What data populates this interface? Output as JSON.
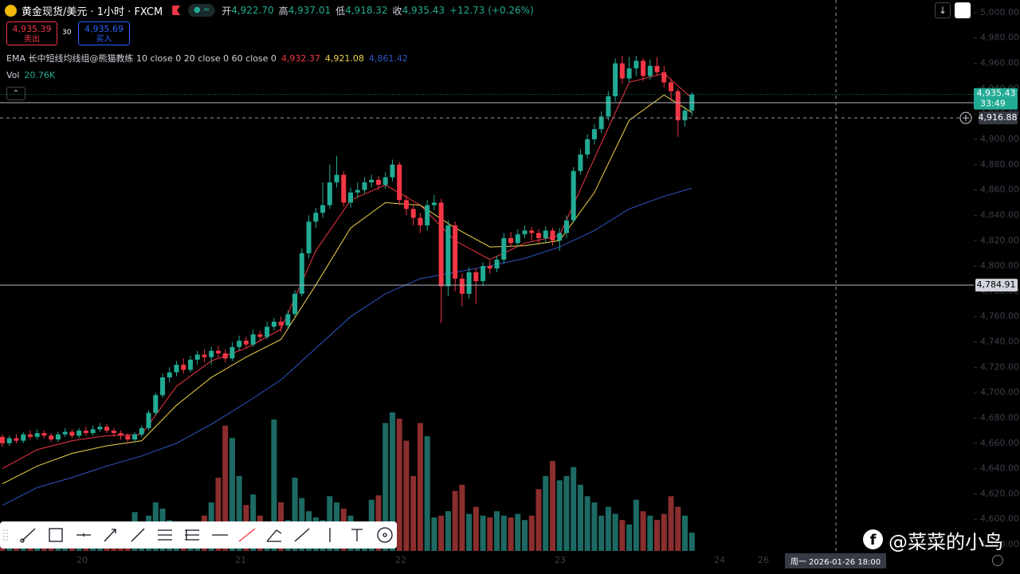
{
  "chart_data": {
    "type": "candlestick",
    "title": "黄金现货/美元 · 1小时 · FXCM",
    "readout": [
      {
        "name": "开",
        "value": "4,922.70"
      },
      {
        "name": "高",
        "value": "4,937.01"
      },
      {
        "name": "低",
        "value": "4,918.32"
      },
      {
        "name": "收",
        "value": "4,935.43"
      }
    ],
    "change": "+12.73 (+0.26%)",
    "sell": {
      "price": "4,935.39",
      "label": "卖出"
    },
    "spread": "30",
    "buy": {
      "price": "4,935.69",
      "label": "买入"
    },
    "indicator_title": "EMA 长中短线均线组@熊猫教练 10 close 0 20 close 0 60 close 0",
    "ema": [
      {
        "color": "#f23645",
        "value_label": "4,932.37",
        "x": [
          0,
          5,
          10,
          15,
          20,
          25,
          30,
          35,
          40,
          45,
          50,
          55,
          60,
          65,
          70,
          75,
          80,
          85,
          90,
          95,
          99
        ],
        "values": [
          4640,
          4655,
          4662,
          4666,
          4667,
          4705,
          4725,
          4735,
          4750,
          4812,
          4852,
          4864,
          4848,
          4820,
          4805,
          4818,
          4824,
          4885,
          4945,
          4952,
          4932.37
        ]
      },
      {
        "color": "#f0d34a",
        "value_label": "4,921.08",
        "x": [
          0,
          5,
          10,
          15,
          20,
          25,
          30,
          35,
          40,
          45,
          50,
          55,
          60,
          65,
          70,
          75,
          80,
          85,
          90,
          95,
          99
        ],
        "values": [
          4628,
          4642,
          4652,
          4658,
          4662,
          4690,
          4712,
          4728,
          4742,
          4785,
          4830,
          4850,
          4848,
          4830,
          4815,
          4816,
          4820,
          4858,
          4915,
          4935,
          4921.08
        ]
      },
      {
        "color": "#2f56c6",
        "value_label": "4,861.42",
        "x": [
          0,
          5,
          10,
          15,
          20,
          25,
          30,
          35,
          40,
          45,
          50,
          55,
          60,
          65,
          70,
          75,
          80,
          85,
          90,
          95,
          99
        ],
        "values": [
          4611,
          4625,
          4633,
          4642,
          4650,
          4660,
          4675,
          4692,
          4710,
          4735,
          4760,
          4778,
          4790,
          4795,
          4800,
          4806,
          4815,
          4828,
          4845,
          4855,
          4861.42
        ]
      }
    ],
    "volume_title": "Vol",
    "volume_label": "20.76K",
    "open": [
      4665,
      4660,
      4664,
      4662,
      4667,
      4665,
      4668,
      4666,
      4663,
      4667,
      4669,
      4666,
      4670,
      4668,
      4671,
      4673,
      4670,
      4668,
      4666,
      4663,
      4667,
      4672,
      4684,
      4698,
      4712,
      4716,
      4722,
      4718,
      4726,
      4730,
      4728,
      4733,
      4731,
      4727,
      4736,
      4741,
      4738,
      4746,
      4744,
      4752,
      4756,
      4753,
      4762,
      4778,
      4810,
      4835,
      4842,
      4848,
      4866,
      4872,
      4850,
      4858,
      4860,
      4866,
      4868,
      4864,
      4870,
      4880,
      4852,
      4845,
      4838,
      4832,
      4848,
      4850,
      4784,
      4832,
      4790,
      4778,
      4795,
      4788,
      4800,
      4798,
      4805,
      4822,
      4818,
      4825,
      4828,
      4826,
      4822,
      4828,
      4820,
      4826,
      4836,
      4875,
      4888,
      4900,
      4908,
      4918,
      4934,
      4960,
      4948,
      4956,
      4962,
      4950,
      4958,
      4953,
      4945,
      4938,
      4915,
      4922.7
    ],
    "high": [
      4667,
      4666,
      4667,
      4669,
      4670,
      4671,
      4670,
      4668,
      4669,
      4672,
      4671,
      4672,
      4673,
      4674,
      4676,
      4675,
      4672,
      4670,
      4668,
      4669,
      4674,
      4686,
      4700,
      4715,
      4720,
      4725,
      4727,
      4729,
      4733,
      4734,
      4736,
      4737,
      4734,
      4740,
      4745,
      4744,
      4750,
      4749,
      4756,
      4759,
      4760,
      4765,
      4781,
      4814,
      4840,
      4846,
      4866,
      4880,
      4887,
      4875,
      4862,
      4866,
      4870,
      4872,
      4871,
      4874,
      4884,
      4882,
      4856,
      4849,
      4842,
      4852,
      4856,
      4853,
      4836,
      4835,
      4794,
      4799,
      4798,
      4803,
      4804,
      4808,
      4826,
      4827,
      4829,
      4832,
      4831,
      4829,
      4831,
      4830,
      4830,
      4840,
      4878,
      4892,
      4904,
      4912,
      4922,
      4938,
      4964,
      4966,
      4965,
      4966,
      4964,
      4963,
      4965,
      4958,
      4948,
      4940,
      4926,
      4937.01
    ],
    "low": [
      4657,
      4658,
      4660,
      4660,
      4663,
      4663,
      4664,
      4661,
      4661,
      4665,
      4664,
      4664,
      4666,
      4666,
      4669,
      4668,
      4665,
      4663,
      4660,
      4661,
      4665,
      4670,
      4682,
      4696,
      4708,
      4713,
      4715,
      4716,
      4722,
      4724,
      4722,
      4728,
      4724,
      4725,
      4733,
      4735,
      4736,
      4741,
      4742,
      4749,
      4748,
      4751,
      4760,
      4776,
      4806,
      4830,
      4838,
      4845,
      4862,
      4847,
      4846,
      4854,
      4857,
      4862,
      4860,
      4861,
      4867,
      4848,
      4840,
      4832,
      4826,
      4828,
      4844,
      4755,
      4776,
      4780,
      4768,
      4774,
      4770,
      4784,
      4794,
      4795,
      4802,
      4815,
      4815,
      4822,
      4820,
      4818,
      4819,
      4816,
      4812,
      4822,
      4834,
      4872,
      4885,
      4896,
      4905,
      4915,
      4930,
      4944,
      4945,
      4950,
      4946,
      4947,
      4950,
      4941,
      4930,
      4902,
      4910,
      4918.32
    ],
    "close": [
      4660,
      4664,
      4662,
      4667,
      4665,
      4668,
      4666,
      4663,
      4667,
      4669,
      4666,
      4670,
      4668,
      4671,
      4673,
      4670,
      4668,
      4666,
      4663,
      4667,
      4672,
      4684,
      4698,
      4712,
      4716,
      4722,
      4718,
      4726,
      4730,
      4728,
      4733,
      4731,
      4727,
      4736,
      4741,
      4738,
      4746,
      4744,
      4752,
      4756,
      4753,
      4762,
      4778,
      4810,
      4835,
      4842,
      4848,
      4866,
      4872,
      4850,
      4858,
      4860,
      4866,
      4868,
      4864,
      4870,
      4880,
      4852,
      4845,
      4838,
      4832,
      4848,
      4850,
      4784,
      4832,
      4790,
      4778,
      4795,
      4788,
      4800,
      4798,
      4805,
      4822,
      4818,
      4825,
      4828,
      4826,
      4822,
      4828,
      4820,
      4826,
      4836,
      4875,
      4888,
      4900,
      4908,
      4918,
      4934,
      4960,
      4948,
      4956,
      4962,
      4950,
      4958,
      4953,
      4945,
      4938,
      4915,
      4922.7,
      4935.43
    ],
    "volume": [
      18,
      15,
      20,
      12,
      16,
      14,
      22,
      18,
      15,
      12,
      20,
      16,
      14,
      18,
      22,
      15,
      25,
      30,
      26,
      44,
      32,
      40,
      55,
      48,
      35,
      30,
      28,
      25,
      30,
      40,
      55,
      83,
      142,
      128,
      85,
      52,
      64,
      40,
      30,
      149,
      55,
      35,
      83,
      60,
      45,
      38,
      35,
      62,
      55,
      48,
      40,
      32,
      30,
      58,
      63,
      145,
      157,
      150,
      125,
      85,
      145,
      130,
      38,
      40,
      45,
      68,
      75,
      42,
      50,
      40,
      38,
      45,
      40,
      38,
      42,
      35,
      40,
      70,
      85,
      102,
      80,
      85,
      95,
      75,
      62,
      55,
      40,
      50,
      42,
      35,
      30,
      58,
      45,
      40,
      35,
      42,
      62,
      50,
      40,
      20.76
    ],
    "up_color": "#22ab94",
    "down_color": "#f23645",
    "volume_up_color": "#1d6a64",
    "volume_down_color": "#8a2e2e",
    "ylim": [
      4575,
      5010
    ],
    "volume_ylim": [
      0,
      200
    ],
    "yticks": [
      {
        "value": 5000,
        "label": "5,000.00"
      },
      {
        "value": 4980,
        "label": "4,980.00"
      },
      {
        "value": 4960,
        "label": "4,960.00"
      },
      {
        "value": 4940,
        "label": "4,940.00"
      },
      {
        "value": 4920,
        "label": "4,920.00"
      },
      {
        "value": 4900,
        "label": "4,900.00"
      },
      {
        "value": 4880,
        "label": "4,880.00"
      },
      {
        "value": 4860,
        "label": "4,860.00"
      },
      {
        "value": 4840,
        "label": "4,840.00"
      },
      {
        "value": 4820,
        "label": "4,820.00"
      },
      {
        "value": 4800,
        "label": "4,800.00"
      },
      {
        "value": 4780,
        "label": "4,780.00"
      },
      {
        "value": 4760,
        "label": "4,760.00"
      },
      {
        "value": 4740,
        "label": "4,740.00"
      },
      {
        "value": 4720,
        "label": "4,720.00"
      },
      {
        "value": 4700,
        "label": "4,700.00"
      },
      {
        "value": 4680,
        "label": "4,680.00"
      },
      {
        "value": 4660,
        "label": "4,660.00"
      },
      {
        "value": 4640,
        "label": "4,640.00"
      },
      {
        "value": 4620,
        "label": "4,620.00"
      },
      {
        "value": 4600,
        "label": "4,600.00"
      },
      {
        "value": 4580,
        "label": "4,580.00"
      }
    ],
    "last_price": {
      "value": 4935.43,
      "label": "4,935.43",
      "countdown": "33:49"
    },
    "crosshair_price": {
      "value": 4916.88,
      "label": "4,916.88"
    },
    "horizontal_line": {
      "value": 4784.91,
      "label": "4,784.91"
    },
    "x_labels": [
      "20",
      "21",
      "22",
      "23",
      "24",
      "26"
    ],
    "crosshair_time": "周一  2026-01-26   18:00"
  },
  "watermark": "@菜菜的小鸟"
}
